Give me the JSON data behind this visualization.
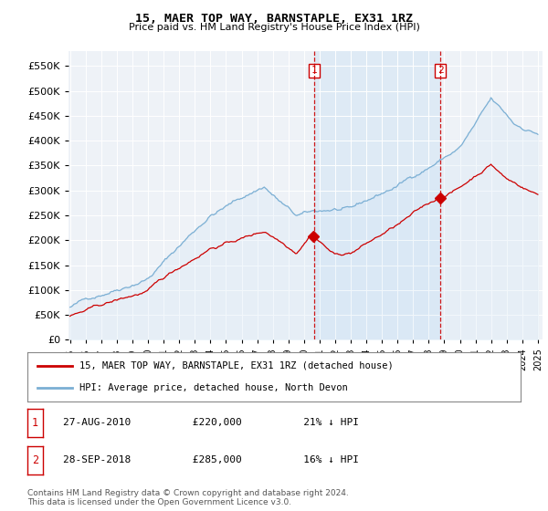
{
  "title": "15, MAER TOP WAY, BARNSTAPLE, EX31 1RZ",
  "subtitle": "Price paid vs. HM Land Registry's House Price Index (HPI)",
  "ylabel_ticks": [
    0,
    50000,
    100000,
    150000,
    200000,
    250000,
    300000,
    350000,
    400000,
    450000,
    500000,
    550000
  ],
  "ylim": [
    0,
    580000
  ],
  "xlim_start": 1994.9,
  "xlim_end": 2025.3,
  "hpi_color": "#7bafd4",
  "hpi_fill_color": "#d0e4f5",
  "price_color": "#cc0000",
  "vline_color": "#cc0000",
  "bg_color": "#eef2f7",
  "grid_color": "#ffffff",
  "transaction1_year": 2010.65,
  "transaction2_year": 2018.75,
  "shade_alpha": 0.35,
  "legend_line1": "15, MAER TOP WAY, BARNSTAPLE, EX31 1RZ (detached house)",
  "legend_line2": "HPI: Average price, detached house, North Devon",
  "table_row1": [
    "1",
    "27-AUG-2010",
    "£220,000",
    "21% ↓ HPI"
  ],
  "table_row2": [
    "2",
    "28-SEP-2018",
    "£285,000",
    "16% ↓ HPI"
  ],
  "footer1": "Contains HM Land Registry data © Crown copyright and database right 2024.",
  "footer2": "This data is licensed under the Open Government Licence v3.0."
}
